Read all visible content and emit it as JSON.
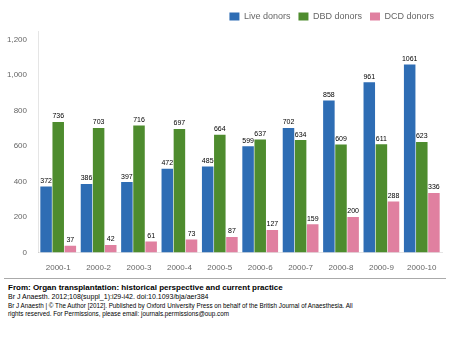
{
  "chart_data": {
    "type": "bar",
    "categories": [
      "2000-1",
      "2000-2",
      "2000-3",
      "2000-4",
      "2000-5",
      "2000-6",
      "2000-7",
      "2000-8",
      "2000-9",
      "2000-10"
    ],
    "series": [
      {
        "name": "Live donors",
        "color": "#2e6db4",
        "values": [
          372,
          386,
          397,
          472,
          485,
          599,
          702,
          858,
          961,
          1061
        ]
      },
      {
        "name": "DBD donors",
        "color": "#4e8c2e",
        "values": [
          736,
          703,
          716,
          697,
          664,
          637,
          634,
          609,
          611,
          623
        ]
      },
      {
        "name": "DCD donors",
        "color": "#e080a0",
        "values": [
          37,
          42,
          61,
          73,
          87,
          127,
          159,
          200,
          288,
          336
        ]
      }
    ],
    "ylim": [
      0,
      1250
    ],
    "yticks": [
      0,
      200,
      400,
      600,
      800,
      1000,
      1200
    ],
    "grid": false,
    "legend": "upper right",
    "data_labels": true,
    "annotations": [
      "From: Organ transplantation: historical perspective and current practice",
      "Br J Anaesth. 2012;108(suppl_1):i29-i42. doi:10.1093/bja/aer384",
      "Br J Anaesth | © The Author [2012]. Published by Oxford University Press on behalf of the British Journal of Anaesthesia. All",
      "rights reserved. For Permissions, please email: journals.permissions@oup.com"
    ]
  }
}
